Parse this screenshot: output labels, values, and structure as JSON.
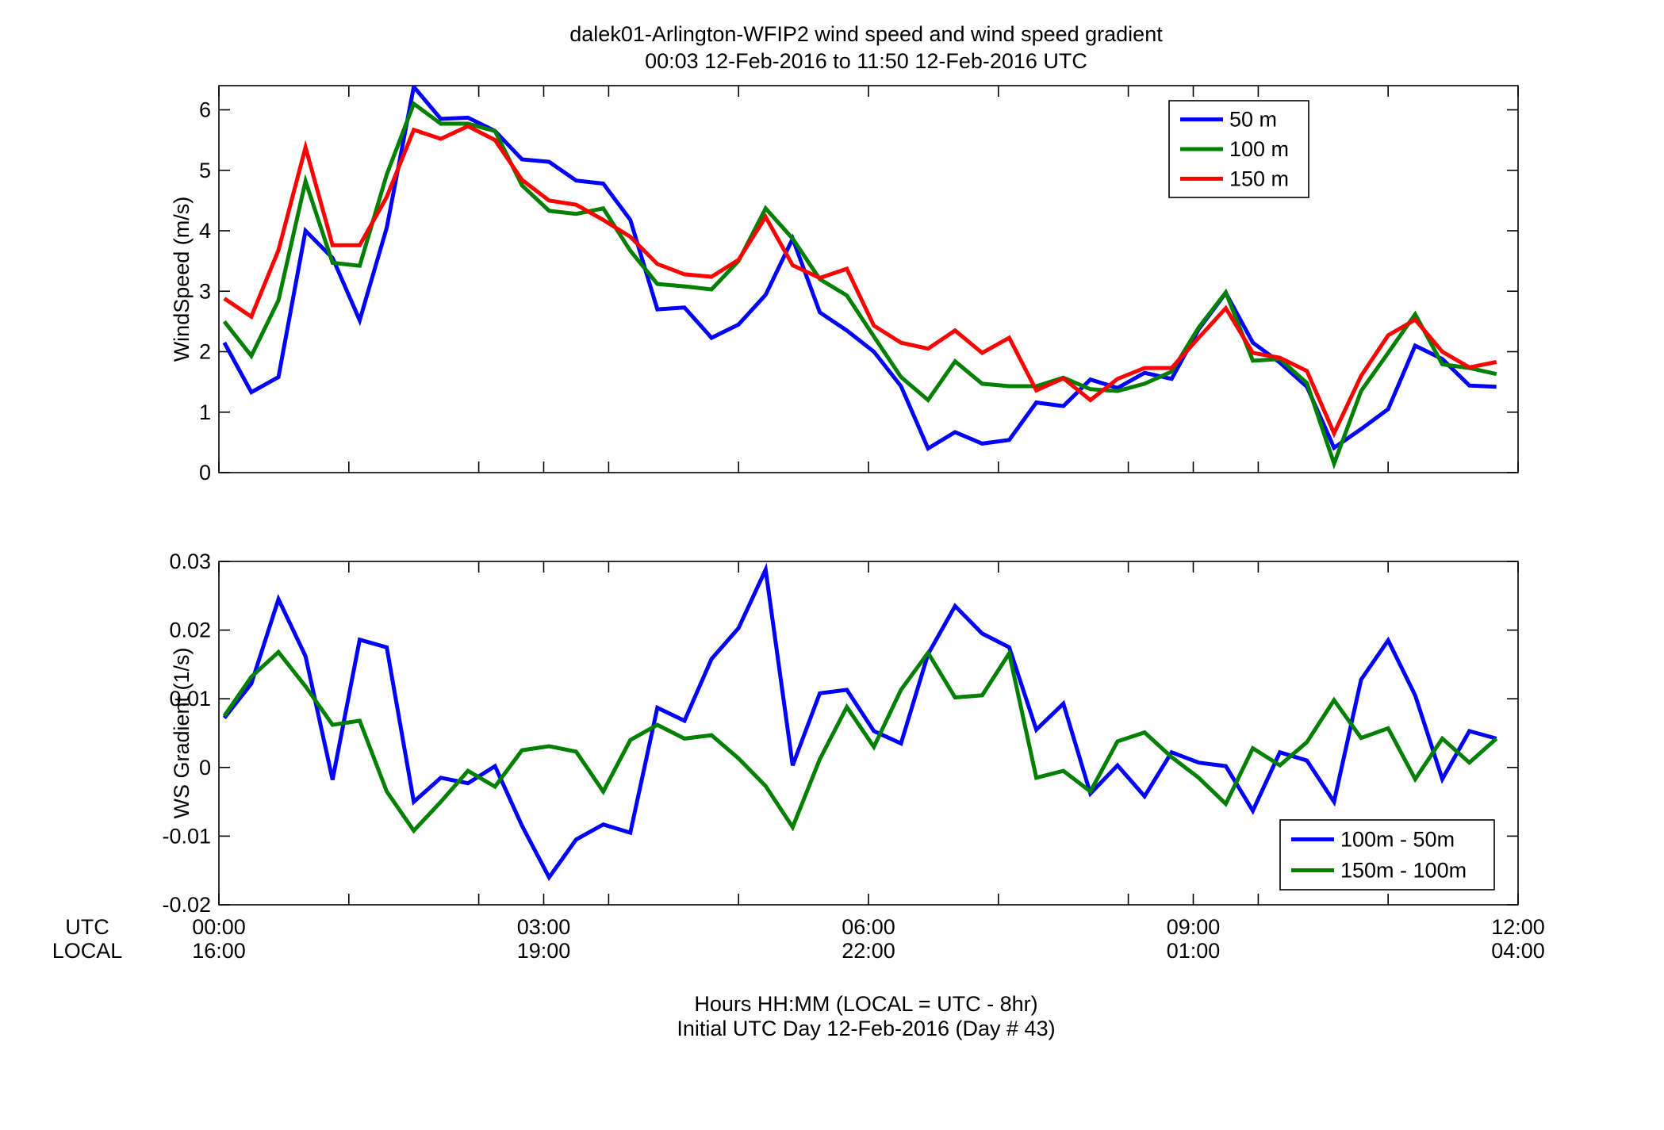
{
  "figure": {
    "title_line1": "dalek01-Arlington-WFIP2  wind speed and wind speed gradient",
    "title_line2": "00:03 12-Feb-2016 to 11:50 12-Feb-2016  UTC",
    "row_label_utc": "UTC",
    "row_label_local": "LOCAL",
    "xlabel_line1": "Hours HH:MM  (LOCAL = UTC - 8hr)",
    "xlabel_line2": "Initial UTC Day 12-Feb-2016 (Day # 43)",
    "x_ticks": [
      {
        "value": 0,
        "utc": "00:00",
        "local": "16:00"
      },
      {
        "value": 3,
        "utc": "03:00",
        "local": "19:00"
      },
      {
        "value": 6,
        "utc": "06:00",
        "local": "22:00"
      },
      {
        "value": 9,
        "utc": "09:00",
        "local": "01:00"
      },
      {
        "value": 12,
        "utc": "12:00",
        "local": "04:00"
      }
    ]
  },
  "chart_data": [
    {
      "type": "line",
      "ylabel": "WindSpeed (m/s)",
      "xlim": [
        0,
        12
      ],
      "ylim": [
        0,
        6.4
      ],
      "yticks": [
        0,
        1,
        2,
        3,
        4,
        5,
        6
      ],
      "ytick_labels": [
        "0",
        "1",
        "2",
        "3",
        "4",
        "5",
        "6"
      ],
      "x_minor_ticks": [
        1.2,
        2.4,
        3.6,
        4.8,
        7.2,
        8.4,
        9.6,
        10.8
      ],
      "grid": false,
      "legend_position": "top-right",
      "x": [
        0.05,
        0.3,
        0.55,
        0.8,
        1.05,
        1.3,
        1.55,
        1.8,
        2.05,
        2.3,
        2.55,
        2.8,
        3.05,
        3.3,
        3.55,
        3.8,
        4.05,
        4.3,
        4.55,
        4.8,
        5.05,
        5.3,
        5.55,
        5.8,
        6.05,
        6.3,
        6.55,
        6.8,
        7.05,
        7.3,
        7.55,
        7.8,
        8.05,
        8.3,
        8.55,
        8.8,
        9.05,
        9.3,
        9.55,
        9.8,
        10.05,
        10.3,
        10.55,
        10.8,
        11.05,
        11.3,
        11.55,
        11.8
      ],
      "series": [
        {
          "name": "50 m",
          "color": "#0000ff",
          "values": [
            2.15,
            1.33,
            1.58,
            4.0,
            3.55,
            2.52,
            4.05,
            6.38,
            5.85,
            5.87,
            5.65,
            5.18,
            5.14,
            4.83,
            4.78,
            4.18,
            2.7,
            2.73,
            2.23,
            2.45,
            2.94,
            3.87,
            2.65,
            2.35,
            2.0,
            1.43,
            0.4,
            0.67,
            0.48,
            0.54,
            1.16,
            1.1,
            1.54,
            1.4,
            1.65,
            1.55,
            2.37,
            2.97,
            2.15,
            1.82,
            1.42,
            0.41,
            0.72,
            1.05,
            2.1,
            1.88,
            1.44,
            1.42
          ]
        },
        {
          "name": "100 m",
          "color": "#008000",
          "values": [
            2.5,
            1.93,
            2.85,
            4.82,
            3.47,
            3.42,
            4.93,
            6.1,
            5.77,
            5.77,
            5.65,
            4.75,
            4.33,
            4.28,
            4.37,
            3.67,
            3.12,
            3.08,
            3.03,
            3.5,
            4.37,
            3.87,
            3.2,
            2.93,
            2.25,
            1.58,
            1.2,
            1.84,
            1.47,
            1.43,
            1.43,
            1.57,
            1.38,
            1.35,
            1.47,
            1.67,
            2.4,
            2.98,
            1.85,
            1.88,
            1.48,
            0.15,
            1.35,
            1.98,
            2.62,
            1.79,
            1.73,
            1.63
          ]
        },
        {
          "name": "150 m",
          "color": "#ff0000",
          "values": [
            2.88,
            2.58,
            3.68,
            5.38,
            3.76,
            3.76,
            4.56,
            5.67,
            5.52,
            5.73,
            5.5,
            4.84,
            4.5,
            4.43,
            4.18,
            3.9,
            3.45,
            3.28,
            3.24,
            3.52,
            4.23,
            3.43,
            3.22,
            3.37,
            2.43,
            2.15,
            2.05,
            2.35,
            1.98,
            2.23,
            1.36,
            1.56,
            1.2,
            1.55,
            1.73,
            1.73,
            2.23,
            2.72,
            1.98,
            1.9,
            1.68,
            0.65,
            1.6,
            2.27,
            2.53,
            2.0,
            1.74,
            1.83
          ]
        }
      ]
    },
    {
      "type": "line",
      "ylabel": "WS Gradient (1/s)",
      "xlim": [
        0,
        12
      ],
      "ylim": [
        -0.02,
        0.03
      ],
      "yticks": [
        -0.02,
        -0.01,
        0,
        0.01,
        0.02,
        0.03
      ],
      "ytick_labels": [
        "-0.02",
        "-0.01",
        "0",
        "0.01",
        "0.02",
        "0.03"
      ],
      "x_minor_ticks": [
        1.2,
        2.4,
        3.6,
        4.8,
        7.2,
        8.4,
        9.6,
        10.8
      ],
      "grid": false,
      "legend_position": "bottom-right",
      "x": [
        0.05,
        0.3,
        0.55,
        0.8,
        1.05,
        1.3,
        1.55,
        1.8,
        2.05,
        2.3,
        2.55,
        2.8,
        3.05,
        3.3,
        3.55,
        3.8,
        4.05,
        4.3,
        4.55,
        4.8,
        5.05,
        5.3,
        5.55,
        5.8,
        6.05,
        6.3,
        6.55,
        6.8,
        7.05,
        7.3,
        7.55,
        7.8,
        8.05,
        8.3,
        8.55,
        8.8,
        9.05,
        9.3,
        9.55,
        9.8,
        10.05,
        10.3,
        10.55,
        10.8,
        11.05,
        11.3,
        11.55,
        11.8
      ],
      "series": [
        {
          "name": "100m - 50m",
          "color": "#0000ff",
          "values": [
            0.0072,
            0.0122,
            0.0245,
            0.0162,
            -0.0018,
            0.0186,
            0.0175,
            -0.005,
            -0.0015,
            -0.0023,
            0.0002,
            -0.0085,
            -0.016,
            -0.0105,
            -0.0083,
            -0.0095,
            0.0087,
            0.0068,
            0.0158,
            0.0203,
            0.0288,
            0.0003,
            0.0108,
            0.0113,
            0.0053,
            0.0035,
            0.0165,
            0.0235,
            0.0195,
            0.0175,
            0.0055,
            0.0093,
            -0.0038,
            0.0003,
            -0.0042,
            0.0022,
            0.0007,
            0.0002,
            -0.0063,
            0.0022,
            0.001,
            -0.005,
            0.0128,
            0.0185,
            0.0105,
            -0.0017,
            0.0053,
            0.0042
          ]
        },
        {
          "name": "150m - 100m",
          "color": "#008000",
          "values": [
            0.0075,
            0.0132,
            0.0168,
            0.0118,
            0.0062,
            0.0068,
            -0.0035,
            -0.0092,
            -0.005,
            -0.0005,
            -0.0028,
            0.0025,
            0.0031,
            0.0023,
            -0.0035,
            0.004,
            0.0062,
            0.0042,
            0.0047,
            0.0013,
            -0.0027,
            -0.0087,
            0.0012,
            0.0088,
            0.003,
            0.0113,
            0.0167,
            0.0102,
            0.0105,
            0.0166,
            -0.0015,
            -0.0005,
            -0.0035,
            0.0038,
            0.0051,
            0.0015,
            -0.0015,
            -0.0053,
            0.0028,
            0.0003,
            0.0037,
            0.0098,
            0.0043,
            0.0057,
            -0.0017,
            0.0042,
            0.0007,
            0.0042
          ]
        }
      ]
    }
  ]
}
